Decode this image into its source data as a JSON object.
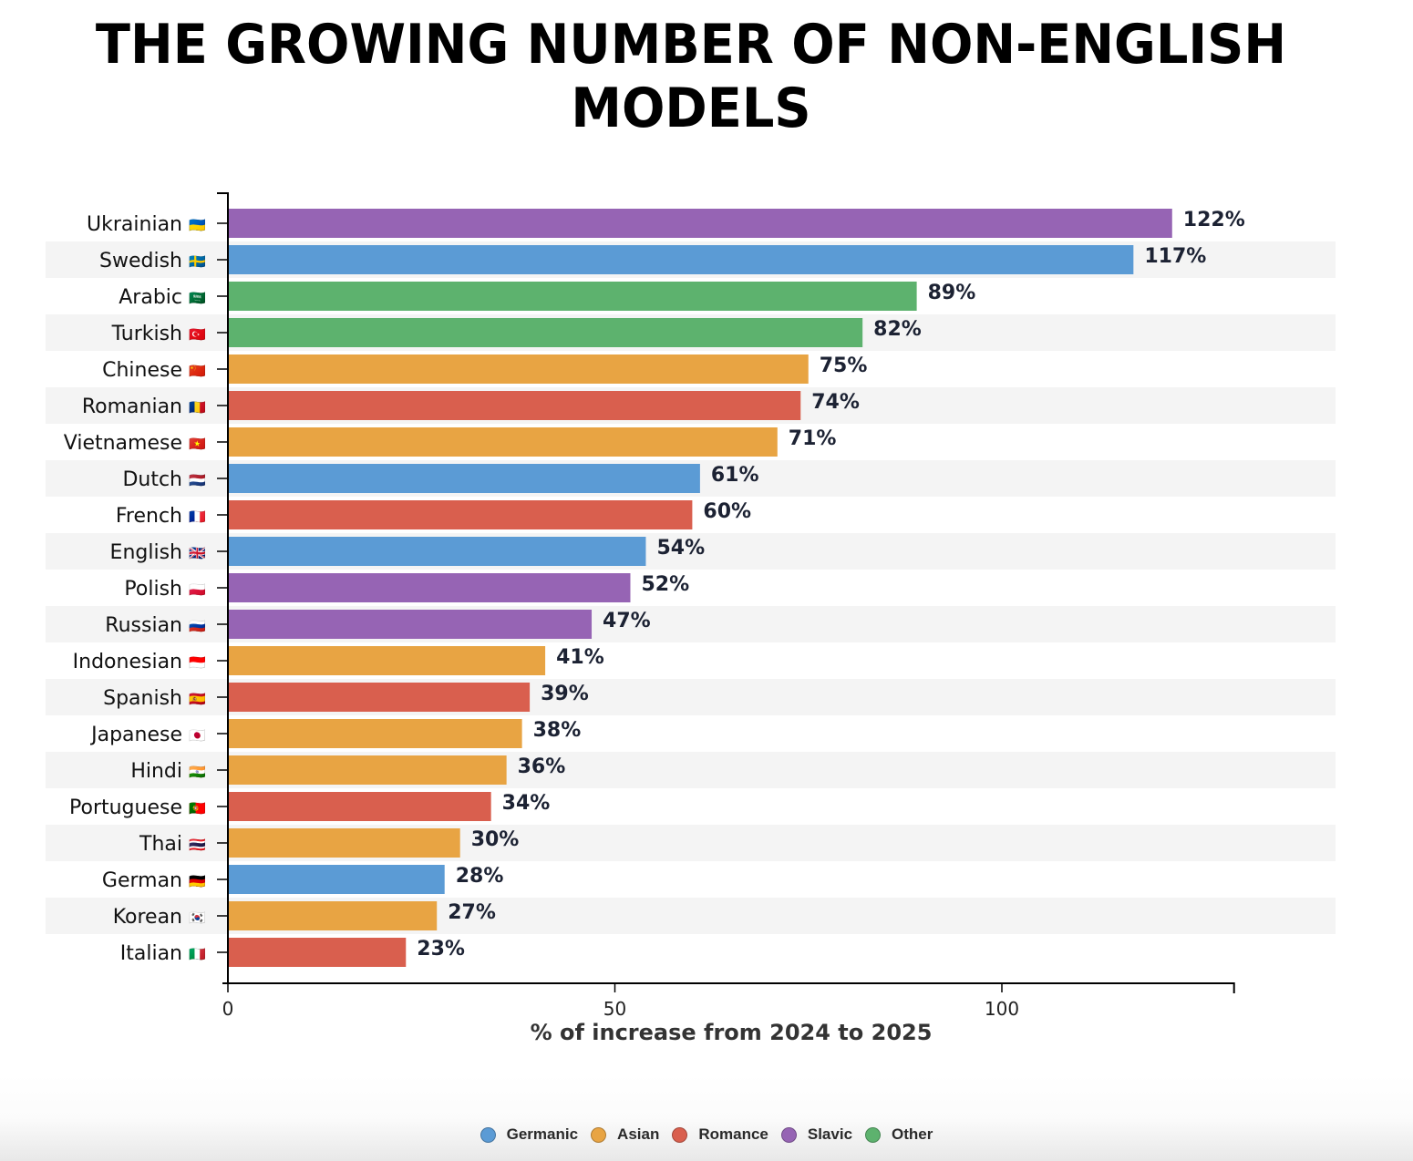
{
  "chart_data": {
    "type": "bar",
    "orientation": "horizontal",
    "title": "THE GROWING NUMBER OF NON-ENGLISH MODELS",
    "xlabel": "% of increase from 2024 to 2025",
    "ylabel": "",
    "xlim": [
      0,
      130
    ],
    "xticks": [
      0,
      50,
      100
    ],
    "value_suffix": "%",
    "grid": false,
    "legend_position": "bottom-center",
    "categories": [
      "Ukrainian",
      "Swedish",
      "Arabic",
      "Turkish",
      "Chinese",
      "Romanian",
      "Vietnamese",
      "Dutch",
      "French",
      "English",
      "Polish",
      "Russian",
      "Indonesian",
      "Spanish",
      "Japanese",
      "Hindi",
      "Portuguese",
      "Thai",
      "German",
      "Korean",
      "Italian"
    ],
    "flags": [
      "🇺🇦",
      "🇸🇪",
      "🇸🇦",
      "🇹🇷",
      "🇨🇳",
      "🇷🇴",
      "🇻🇳",
      "🇳🇱",
      "🇫🇷",
      "🇬🇧",
      "🇵🇱",
      "🇷🇺",
      "🇮🇩",
      "🇪🇸",
      "🇯🇵",
      "🇮🇳",
      "🇵🇹",
      "🇹🇭",
      "🇩🇪",
      "🇰🇷",
      "🇮🇹"
    ],
    "values": [
      122,
      117,
      89,
      82,
      75,
      74,
      71,
      61,
      60,
      54,
      52,
      47,
      41,
      39,
      38,
      36,
      34,
      30,
      28,
      27,
      23
    ],
    "groups": [
      "Slavic",
      "Germanic",
      "Other",
      "Other",
      "Asian",
      "Romance",
      "Asian",
      "Germanic",
      "Romance",
      "Germanic",
      "Slavic",
      "Slavic",
      "Asian",
      "Romance",
      "Asian",
      "Asian",
      "Romance",
      "Asian",
      "Germanic",
      "Asian",
      "Romance"
    ],
    "legend": [
      {
        "name": "Germanic",
        "color": "#5b9bd5"
      },
      {
        "name": "Asian",
        "color": "#e8a443"
      },
      {
        "name": "Romance",
        "color": "#d95f4e"
      },
      {
        "name": "Slavic",
        "color": "#9664b4"
      },
      {
        "name": "Other",
        "color": "#5db26e"
      }
    ]
  }
}
